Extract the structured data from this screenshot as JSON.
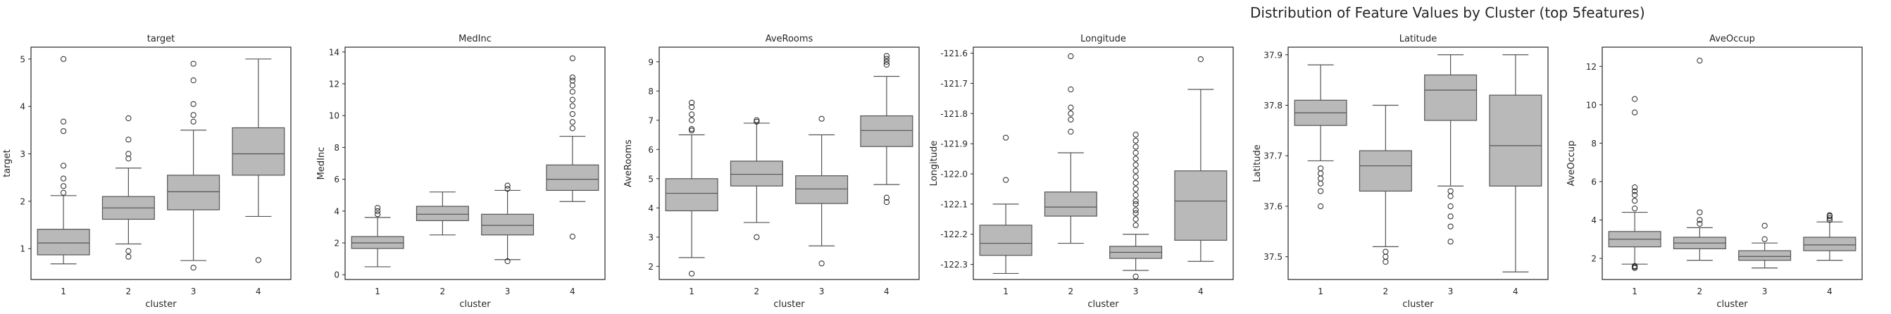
{
  "suptitle": "Distribution of Feature Values by Cluster (top 5features)",
  "colors": {
    "box_fill": "#b9b9b9",
    "line": "#555555",
    "frame": "#262626",
    "text": "#262626"
  },
  "chart_data": [
    {
      "type": "box",
      "title": "target",
      "xlabel": "cluster",
      "ylabel": "target",
      "categories": [
        "1",
        "2",
        "3",
        "4"
      ],
      "ylim": [
        0.35,
        5.25
      ],
      "yticks": [
        1,
        2,
        3,
        4,
        5
      ],
      "tick_labels": [
        "1",
        "2",
        "3",
        "4",
        "5"
      ],
      "boxes": [
        {
          "whislo": 0.68,
          "q1": 0.87,
          "med": 1.12,
          "q3": 1.41,
          "whishi": 2.12,
          "fliers": [
            2.18,
            2.32,
            2.48,
            2.75,
            3.48,
            3.68,
            5.0
          ]
        },
        {
          "whislo": 1.1,
          "q1": 1.62,
          "med": 1.86,
          "q3": 2.1,
          "whishi": 2.7,
          "fliers": [
            0.83,
            0.95,
            2.9,
            3.0,
            3.3,
            3.75
          ]
        },
        {
          "whislo": 0.75,
          "q1": 1.82,
          "med": 2.2,
          "q3": 2.55,
          "whishi": 3.5,
          "fliers": [
            0.6,
            3.68,
            3.82,
            4.05,
            4.55,
            4.9
          ]
        },
        {
          "whislo": 1.68,
          "q1": 2.55,
          "med": 3.0,
          "q3": 3.55,
          "whishi": 5.0,
          "fliers": [
            0.76
          ]
        }
      ]
    },
    {
      "type": "box",
      "title": "MedInc",
      "xlabel": "cluster",
      "ylabel": "MedInc",
      "categories": [
        "1",
        "2",
        "3",
        "4"
      ],
      "ylim": [
        -0.3,
        14.3
      ],
      "yticks": [
        0,
        2,
        4,
        6,
        8,
        10,
        12,
        14
      ],
      "tick_labels": [
        "0",
        "2",
        "4",
        "6",
        "8",
        "10",
        "12",
        "14"
      ],
      "boxes": [
        {
          "whislo": 0.5,
          "q1": 1.65,
          "med": 2.0,
          "q3": 2.4,
          "whishi": 3.6,
          "fliers": [
            3.8,
            4.0,
            4.2
          ]
        },
        {
          "whislo": 2.5,
          "q1": 3.4,
          "med": 3.8,
          "q3": 4.3,
          "whishi": 5.2,
          "fliers": []
        },
        {
          "whislo": 0.95,
          "q1": 2.5,
          "med": 3.1,
          "q3": 3.8,
          "whishi": 5.3,
          "fliers": [
            0.85,
            5.4,
            5.6
          ]
        },
        {
          "whislo": 4.6,
          "q1": 5.3,
          "med": 6.0,
          "q3": 6.9,
          "whishi": 8.7,
          "fliers": [
            2.4,
            9.2,
            9.6,
            10.1,
            10.6,
            11.0,
            11.5,
            11.9,
            12.2,
            12.4,
            13.6
          ]
        }
      ]
    },
    {
      "type": "box",
      "title": "AveRooms",
      "xlabel": "cluster",
      "ylabel": "AveRooms",
      "categories": [
        "1",
        "2",
        "3",
        "4"
      ],
      "ylim": [
        1.55,
        9.5
      ],
      "yticks": [
        2,
        3,
        4,
        5,
        6,
        7,
        8,
        9
      ],
      "tick_labels": [
        "2",
        "3",
        "4",
        "5",
        "6",
        "7",
        "8",
        "9"
      ],
      "boxes": [
        {
          "whislo": 2.3,
          "q1": 3.9,
          "med": 4.5,
          "q3": 5.0,
          "whishi": 6.5,
          "fliers": [
            1.75,
            6.65,
            6.7,
            7.0,
            7.2,
            7.45,
            7.6
          ]
        },
        {
          "whislo": 3.5,
          "q1": 4.75,
          "med": 5.15,
          "q3": 5.6,
          "whishi": 6.9,
          "fliers": [
            3.0,
            6.95,
            7.0
          ]
        },
        {
          "whislo": 2.7,
          "q1": 4.15,
          "med": 4.65,
          "q3": 5.1,
          "whishi": 6.5,
          "fliers": [
            2.1,
            7.05
          ]
        },
        {
          "whislo": 4.8,
          "q1": 6.1,
          "med": 6.65,
          "q3": 7.15,
          "whishi": 8.5,
          "fliers": [
            4.2,
            4.35,
            8.9,
            9.0,
            9.1,
            9.2
          ]
        }
      ]
    },
    {
      "type": "box",
      "title": "Longitude",
      "xlabel": "cluster",
      "ylabel": "Longitude",
      "categories": [
        "1",
        "2",
        "3",
        "4"
      ],
      "ylim": [
        -122.35,
        -121.58
      ],
      "yticks": [
        -122.3,
        -122.2,
        -122.1,
        -122.0,
        -121.9,
        -121.8,
        -121.7,
        -121.6
      ],
      "tick_labels": [
        "-122.3",
        "-122.2",
        "-122.1",
        "-122.0",
        "-121.9",
        "-121.8",
        "-121.7",
        "-121.6"
      ],
      "boxes": [
        {
          "whislo": -122.33,
          "q1": -122.27,
          "med": -122.23,
          "q3": -122.17,
          "whishi": -122.1,
          "fliers": [
            -122.02,
            -121.88
          ]
        },
        {
          "whislo": -122.23,
          "q1": -122.14,
          "med": -122.11,
          "q3": -122.06,
          "whishi": -121.93,
          "fliers": [
            -121.86,
            -121.82,
            -121.8,
            -121.78,
            -121.72,
            -121.61
          ]
        },
        {
          "whislo": -122.32,
          "q1": -122.28,
          "med": -122.26,
          "q3": -122.24,
          "whishi": -122.2,
          "fliers": [
            -122.34,
            -122.17,
            -122.15,
            -122.13,
            -122.12,
            -122.1,
            -122.09,
            -122.07,
            -122.05,
            -122.03,
            -122.01,
            -121.99,
            -121.97,
            -121.95,
            -121.93,
            -121.91,
            -121.89,
            -121.87
          ]
        },
        {
          "whislo": -122.29,
          "q1": -122.22,
          "med": -122.09,
          "q3": -121.99,
          "whishi": -121.72,
          "fliers": [
            -121.62
          ]
        }
      ]
    },
    {
      "type": "box",
      "title": "Latitude",
      "xlabel": "cluster",
      "ylabel": "Latitude",
      "categories": [
        "1",
        "2",
        "3",
        "4"
      ],
      "ylim": [
        37.455,
        37.915
      ],
      "yticks": [
        37.5,
        37.6,
        37.7,
        37.8,
        37.9
      ],
      "tick_labels": [
        "37.5",
        "37.6",
        "37.7",
        "37.8",
        "37.9"
      ],
      "boxes": [
        {
          "whislo": 37.69,
          "q1": 37.76,
          "med": 37.785,
          "q3": 37.81,
          "whishi": 37.88,
          "fliers": [
            37.6,
            37.63,
            37.645,
            37.655,
            37.665,
            37.675
          ]
        },
        {
          "whislo": 37.52,
          "q1": 37.63,
          "med": 37.68,
          "q3": 37.71,
          "whishi": 37.8,
          "fliers": [
            37.49,
            37.5,
            37.51
          ]
        },
        {
          "whislo": 37.64,
          "q1": 37.77,
          "med": 37.83,
          "q3": 37.86,
          "whishi": 37.9,
          "fliers": [
            37.53,
            37.56,
            37.58,
            37.6,
            37.62,
            37.63
          ]
        },
        {
          "whislo": 37.47,
          "q1": 37.64,
          "med": 37.72,
          "q3": 37.82,
          "whishi": 37.9,
          "fliers": []
        }
      ]
    },
    {
      "type": "box",
      "title": "AveOccup",
      "xlabel": "cluster",
      "ylabel": "AveOccup",
      "categories": [
        "1",
        "2",
        "3",
        "4"
      ],
      "ylim": [
        0.9,
        13.0
      ],
      "yticks": [
        2,
        4,
        6,
        8,
        10,
        12
      ],
      "tick_labels": [
        "2",
        "4",
        "6",
        "8",
        "10",
        "12"
      ],
      "boxes": [
        {
          "whislo": 1.7,
          "q1": 2.6,
          "med": 3.0,
          "q3": 3.4,
          "whishi": 4.4,
          "fliers": [
            1.5,
            1.55,
            1.6,
            4.6,
            5.0,
            5.3,
            5.5,
            5.7,
            9.6,
            10.3
          ]
        },
        {
          "whislo": 1.9,
          "q1": 2.5,
          "med": 2.8,
          "q3": 3.1,
          "whishi": 3.6,
          "fliers": [
            3.8,
            4.0,
            4.4,
            12.3
          ]
        },
        {
          "whislo": 1.5,
          "q1": 1.9,
          "med": 2.1,
          "q3": 2.4,
          "whishi": 2.8,
          "fliers": [
            3.0,
            3.7
          ]
        },
        {
          "whislo": 1.9,
          "q1": 2.4,
          "med": 2.7,
          "q3": 3.1,
          "whishi": 3.9,
          "fliers": [
            4.0,
            4.1,
            4.2,
            4.25
          ]
        }
      ]
    }
  ]
}
